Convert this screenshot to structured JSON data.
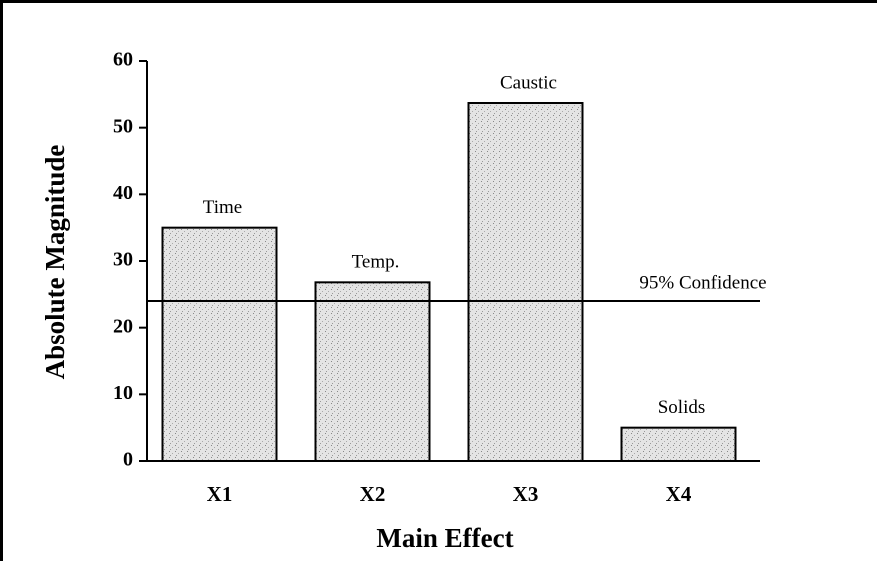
{
  "chart_data": {
    "type": "bar",
    "xlabel": "Main Effect",
    "ylabel": "Absolute Magnitude",
    "categories": [
      "X1",
      "X2",
      "X3",
      "X4"
    ],
    "values": [
      35,
      26.8,
      53.7,
      5
    ],
    "bar_labels": [
      "Time",
      "Temp.",
      "Caustic",
      "Solids"
    ],
    "color": "#d9d9d9",
    "ylim": [
      0,
      60
    ],
    "yticks": [
      0,
      10,
      20,
      30,
      40,
      50,
      60
    ],
    "reference_line": {
      "value": 24,
      "label": "95% Confidence"
    }
  }
}
